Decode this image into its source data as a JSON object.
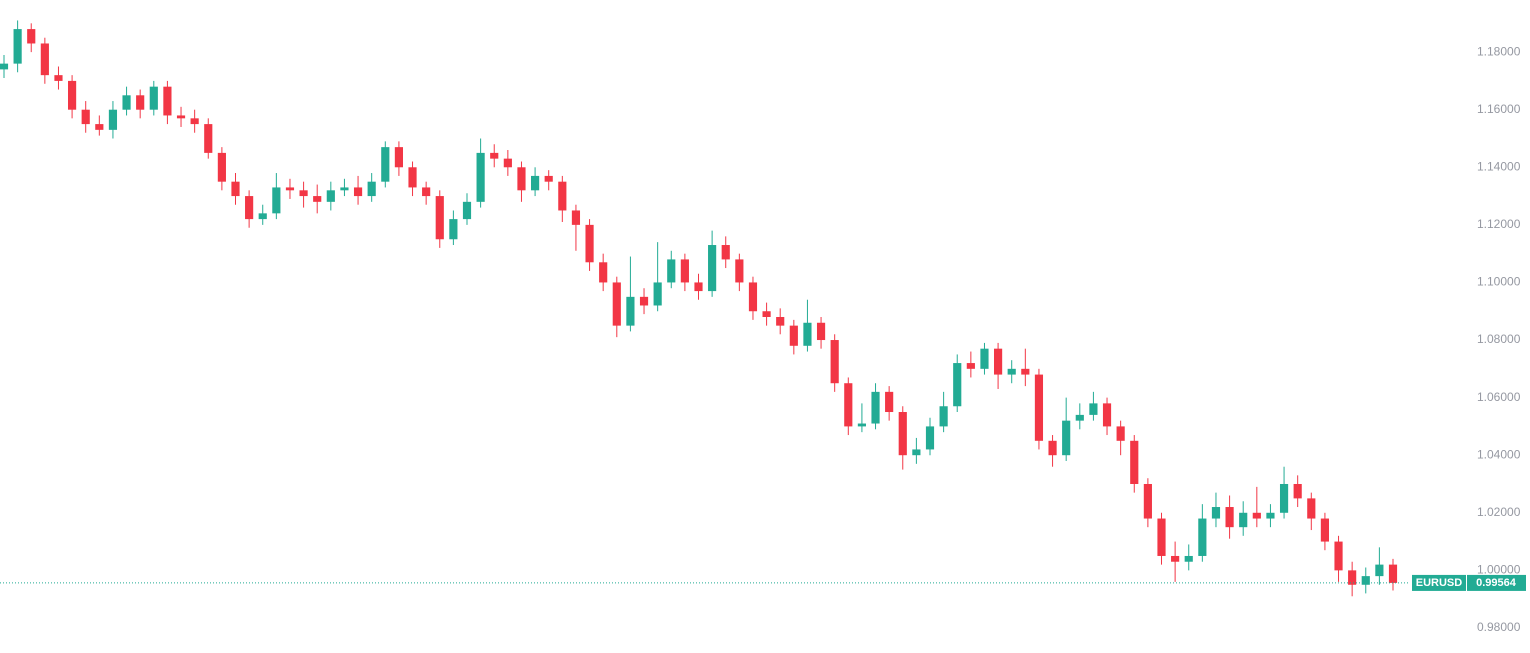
{
  "chart_data": {
    "type": "candlestick",
    "symbol": "EURUSD",
    "up_color": "#22ab94",
    "down_color": "#f23645",
    "open": [
      1.174,
      1.176,
      1.188,
      1.183,
      1.172,
      1.17,
      1.16,
      1.155,
      1.153,
      1.16,
      1.165,
      1.16,
      1.168,
      1.158,
      1.157,
      1.155,
      1.145,
      1.135,
      1.13,
      1.122,
      1.124,
      1.133,
      1.132,
      1.13,
      1.128,
      1.132,
      1.133,
      1.13,
      1.135,
      1.147,
      1.14,
      1.133,
      1.13,
      1.115,
      1.122,
      1.128,
      1.145,
      1.143,
      1.14,
      1.132,
      1.137,
      1.135,
      1.125,
      1.12,
      1.107,
      1.1,
      1.085,
      1.095,
      1.092,
      1.1,
      1.108,
      1.1,
      1.097,
      1.113,
      1.108,
      1.1,
      1.09,
      1.088,
      1.085,
      1.078,
      1.086,
      1.08,
      1.065,
      1.05,
      1.051,
      1.062,
      1.055,
      1.04,
      1.042,
      1.05,
      1.057,
      1.072,
      1.07,
      1.077,
      1.068,
      1.07,
      1.068,
      1.045,
      1.04,
      1.052,
      1.054,
      1.058,
      1.05,
      1.045,
      1.03,
      1.018,
      1.005,
      1.003,
      1.005,
      1.018,
      1.022,
      1.015,
      1.02,
      1.018,
      1.02,
      1.03,
      1.025,
      1.018,
      1.01,
      1.0,
      0.995,
      0.998,
      1.002
    ],
    "high": [
      1.179,
      1.191,
      1.19,
      1.185,
      1.175,
      1.172,
      1.163,
      1.158,
      1.163,
      1.168,
      1.167,
      1.17,
      1.17,
      1.161,
      1.16,
      1.157,
      1.147,
      1.138,
      1.132,
      1.127,
      1.138,
      1.136,
      1.135,
      1.134,
      1.135,
      1.136,
      1.137,
      1.138,
      1.149,
      1.149,
      1.142,
      1.135,
      1.132,
      1.125,
      1.131,
      1.15,
      1.148,
      1.146,
      1.142,
      1.14,
      1.139,
      1.137,
      1.127,
      1.122,
      1.11,
      1.102,
      1.109,
      1.098,
      1.114,
      1.111,
      1.11,
      1.103,
      1.118,
      1.116,
      1.11,
      1.102,
      1.093,
      1.091,
      1.087,
      1.094,
      1.088,
      1.082,
      1.067,
      1.058,
      1.065,
      1.064,
      1.057,
      1.046,
      1.053,
      1.062,
      1.075,
      1.076,
      1.079,
      1.079,
      1.073,
      1.077,
      1.07,
      1.047,
      1.06,
      1.058,
      1.062,
      1.06,
      1.052,
      1.047,
      1.032,
      1.02,
      1.01,
      1.009,
      1.023,
      1.027,
      1.026,
      1.024,
      1.029,
      1.023,
      1.036,
      1.033,
      1.027,
      1.02,
      1.012,
      1.003,
      1.001,
      1.008,
      1.004
    ],
    "low": [
      1.171,
      1.173,
      1.18,
      1.169,
      1.167,
      1.157,
      1.152,
      1.151,
      1.15,
      1.158,
      1.157,
      1.158,
      1.155,
      1.154,
      1.152,
      1.143,
      1.132,
      1.127,
      1.119,
      1.12,
      1.122,
      1.129,
      1.126,
      1.124,
      1.125,
      1.13,
      1.127,
      1.128,
      1.133,
      1.137,
      1.13,
      1.127,
      1.112,
      1.113,
      1.12,
      1.126,
      1.14,
      1.137,
      1.128,
      1.13,
      1.132,
      1.121,
      1.111,
      1.104,
      1.097,
      1.081,
      1.083,
      1.089,
      1.09,
      1.098,
      1.097,
      1.094,
      1.095,
      1.105,
      1.097,
      1.087,
      1.085,
      1.082,
      1.075,
      1.076,
      1.077,
      1.062,
      1.047,
      1.048,
      1.049,
      1.052,
      1.035,
      1.037,
      1.04,
      1.048,
      1.055,
      1.067,
      1.068,
      1.063,
      1.065,
      1.064,
      1.042,
      1.036,
      1.038,
      1.049,
      1.052,
      1.047,
      1.04,
      1.027,
      1.015,
      1.002,
      0.996,
      1.0,
      1.003,
      1.015,
      1.011,
      1.012,
      1.015,
      1.015,
      1.018,
      1.022,
      1.014,
      1.007,
      0.996,
      0.991,
      0.992,
      0.995,
      0.993
    ],
    "close": [
      1.176,
      1.188,
      1.183,
      1.172,
      1.17,
      1.16,
      1.155,
      1.153,
      1.16,
      1.165,
      1.16,
      1.168,
      1.158,
      1.157,
      1.155,
      1.145,
      1.135,
      1.13,
      1.122,
      1.124,
      1.133,
      1.132,
      1.13,
      1.128,
      1.132,
      1.133,
      1.13,
      1.135,
      1.147,
      1.14,
      1.133,
      1.13,
      1.115,
      1.122,
      1.128,
      1.145,
      1.143,
      1.14,
      1.132,
      1.137,
      1.135,
      1.125,
      1.12,
      1.107,
      1.1,
      1.085,
      1.095,
      1.092,
      1.1,
      1.108,
      1.1,
      1.097,
      1.113,
      1.108,
      1.1,
      1.09,
      1.088,
      1.085,
      1.078,
      1.086,
      1.08,
      1.065,
      1.05,
      1.051,
      1.062,
      1.055,
      1.04,
      1.042,
      1.05,
      1.057,
      1.072,
      1.07,
      1.077,
      1.068,
      1.07,
      1.068,
      1.045,
      1.04,
      1.052,
      1.054,
      1.058,
      1.05,
      1.045,
      1.03,
      1.018,
      1.005,
      1.003,
      1.005,
      1.018,
      1.022,
      1.015,
      1.02,
      1.018,
      1.02,
      1.03,
      1.025,
      1.018,
      1.01,
      1.0,
      0.995,
      0.998,
      1.002,
      0.99564
    ],
    "ylim": [
      0.9713,
      1.1981
    ],
    "yticks": [
      {
        "value": 0.98,
        "label": "0.98000"
      },
      {
        "value": 1.0,
        "label": "1.00000"
      },
      {
        "value": 1.02,
        "label": "1.02000"
      },
      {
        "value": 1.04,
        "label": "1.04000"
      },
      {
        "value": 1.06,
        "label": "1.06000"
      },
      {
        "value": 1.08,
        "label": "1.08000"
      },
      {
        "value": 1.1,
        "label": "1.10000"
      },
      {
        "value": 1.12,
        "label": "1.12000"
      },
      {
        "value": 1.14,
        "label": "1.14000"
      },
      {
        "value": 1.16,
        "label": "1.16000"
      },
      {
        "value": 1.18,
        "label": "1.18000"
      }
    ]
  }
}
